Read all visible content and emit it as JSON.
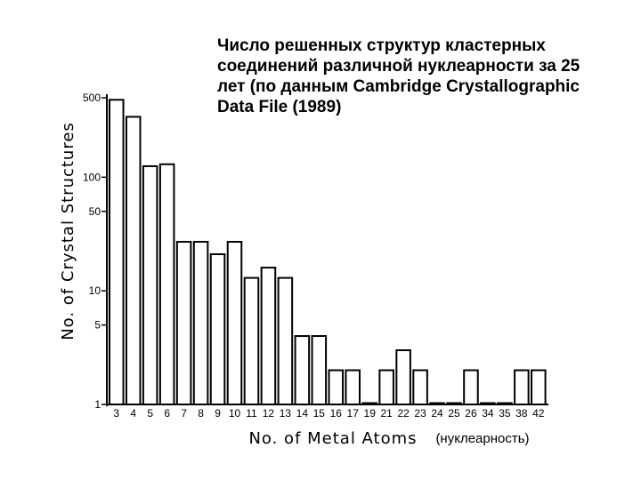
{
  "title_lines": [
    "Число решенных структур кластерных",
    "соединений различной нуклеарности за 25",
    "лет (по данным Cambridge Crystallographic",
    "Data File (1989)"
  ],
  "chart_data": {
    "type": "bar",
    "ylabel": "No. of Crystal Structures",
    "xlabel": "No. of Metal Atoms",
    "xlabel_note": "(нуклеарность)",
    "y_scale": "log",
    "ylim": [
      1,
      500
    ],
    "yticks": [
      1,
      5,
      10,
      50,
      100,
      500
    ],
    "categories": [
      "3",
      "4",
      "5",
      "6",
      "7",
      "8",
      "9",
      "10",
      "11",
      "12",
      "13",
      "14",
      "15",
      "16",
      "17",
      "19",
      "21",
      "22",
      "23",
      "24",
      "25",
      "26",
      "34",
      "35",
      "38",
      "42"
    ],
    "values": [
      480,
      340,
      125,
      130,
      27,
      27,
      21,
      27,
      13,
      16,
      13,
      4,
      4,
      2,
      2,
      1,
      2,
      3,
      2,
      1,
      1,
      2,
      1,
      1,
      2,
      2
    ]
  }
}
